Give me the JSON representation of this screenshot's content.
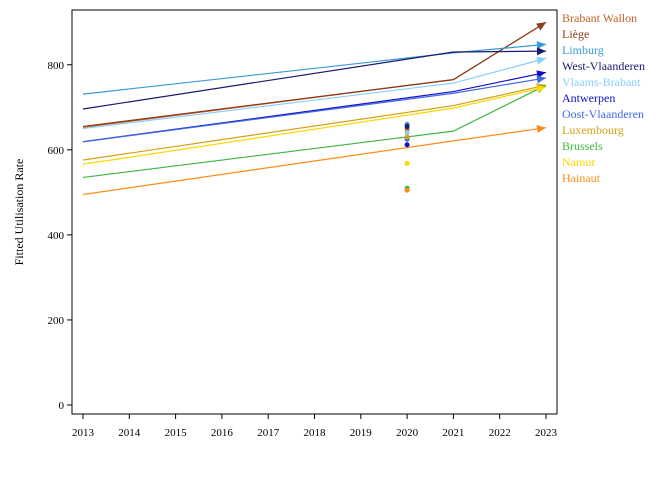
{
  "chart_data": {
    "type": "line",
    "title": "",
    "xlabel": "",
    "ylabel": "Fitted Utilisation Rate",
    "xlim": [
      2013,
      2023
    ],
    "ylim": [
      0,
      900
    ],
    "x_ticks": [
      "2013",
      "2014",
      "2015",
      "2016",
      "2017",
      "2018",
      "2019",
      "2020",
      "2021",
      "2022",
      "2023"
    ],
    "y_ticks": [
      "0",
      "200",
      "400",
      "600",
      "800"
    ],
    "grid": false,
    "legend_position": "right",
    "line_x": [
      2013,
      2021,
      2023
    ],
    "series": [
      {
        "name": "Brabant Wallon",
        "color": "#c0622a",
        "values": [
          653,
          765,
          900
        ],
        "obs_2020": 648
      },
      {
        "name": "Liège",
        "color": "#8b3a1a",
        "values": [
          655,
          765,
          900
        ],
        "obs_2020": 628
      },
      {
        "name": "Limburg",
        "color": "#3a9ad9",
        "values": [
          731,
          828,
          848
        ],
        "obs_2020": 660
      },
      {
        "name": "West-Vlaanderen",
        "color": "#1a1a6e",
        "values": [
          696,
          830,
          832
        ],
        "obs_2020": 655
      },
      {
        "name": "Vlaams-Brabant",
        "color": "#87cefa",
        "values": [
          650,
          757,
          815
        ],
        "obs_2020": 640
      },
      {
        "name": "Antwerpen",
        "color": "#1010cc",
        "values": [
          619,
          737,
          782
        ],
        "obs_2020": 612
      },
      {
        "name": "Oost-Vlaanderen",
        "color": "#4169e1",
        "values": [
          619,
          733,
          769
        ],
        "obs_2020": 625
      },
      {
        "name": "Luxembourg",
        "color": "#d4a017",
        "values": [
          576,
          704,
          752
        ],
        "obs_2020": 630
      },
      {
        "name": "Brussels",
        "color": "#3cb83c",
        "values": [
          535,
          644,
          752
        ],
        "obs_2020": 510
      },
      {
        "name": "Namur",
        "color": "#ffd700",
        "values": [
          566,
          698,
          748
        ],
        "obs_2020": 568
      },
      {
        "name": "Hainaut",
        "color": "#ff8c1a",
        "values": [
          495,
          621,
          652
        ],
        "obs_2020": 505
      }
    ]
  }
}
